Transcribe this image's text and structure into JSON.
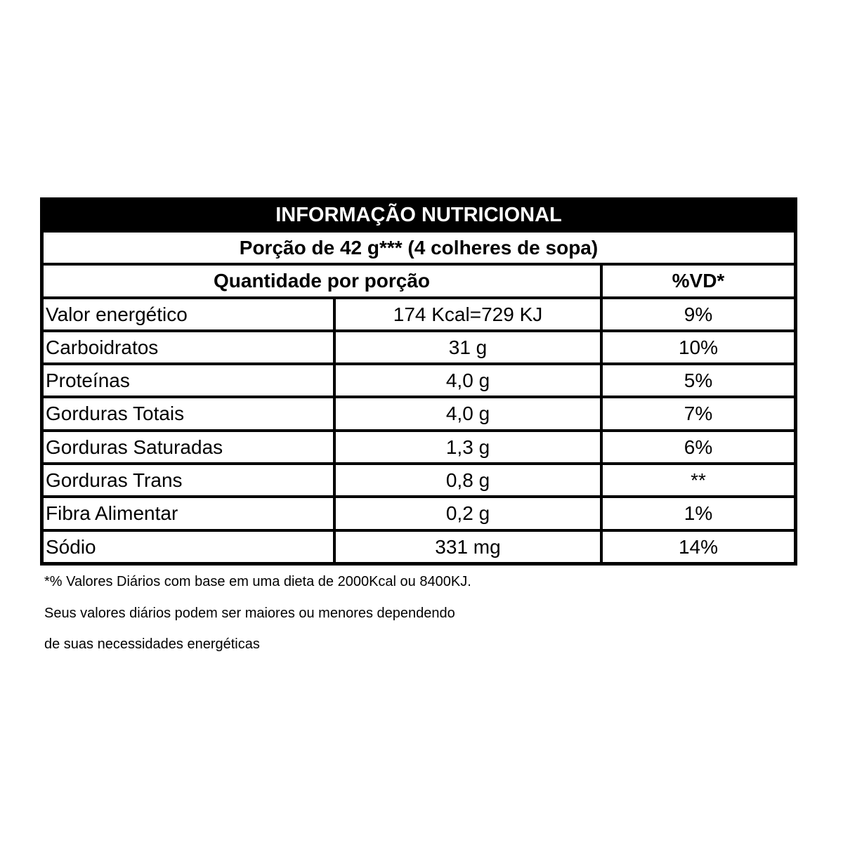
{
  "title": "INFORMAÇÃO NUTRICIONAL",
  "portion": "Porção de 42 g*** (4 colheres de sopa)",
  "header": {
    "quantity": "Quantidade por porção",
    "dv": "%VD*"
  },
  "rows": [
    {
      "name": "Valor energético",
      "amount": "174 Kcal=729 KJ",
      "dv": "9%"
    },
    {
      "name": "Carboidratos",
      "amount": "31 g",
      "dv": "10%"
    },
    {
      "name": "Proteínas",
      "amount": "4,0 g",
      "dv": "5%"
    },
    {
      "name": "Gorduras Totais",
      "amount": "4,0 g",
      "dv": "7%"
    },
    {
      "name": "Gorduras Saturadas",
      "amount": "1,3 g",
      "dv": "6%"
    },
    {
      "name": "Gorduras Trans",
      "amount": "0,8 g",
      "dv": "**"
    },
    {
      "name": "Fibra Alimentar",
      "amount": "0,2 g",
      "dv": "1%"
    },
    {
      "name": "Sódio",
      "amount": "331 mg",
      "dv": "14%"
    }
  ],
  "footnotes": [
    "*% Valores Diários com base em uma dieta de 2000Kcal ou 8400KJ.",
    "Seus valores diários podem ser maiores ou menores dependendo",
    "de suas necessidades energéticas"
  ]
}
